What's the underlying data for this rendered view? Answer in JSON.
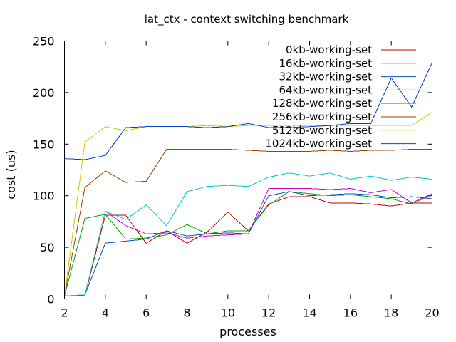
{
  "chart_data": {
    "type": "line",
    "title": "lat_ctx - context switching benchmark",
    "xlabel": "processes",
    "ylabel": "cost (us)",
    "xlim": [
      2,
      20
    ],
    "ylim": [
      0,
      250
    ],
    "xticks": [
      2,
      4,
      6,
      8,
      10,
      12,
      14,
      16,
      18,
      20
    ],
    "yticks": [
      0,
      50,
      100,
      150,
      200,
      250
    ],
    "grid": false,
    "legend_position": "top-right",
    "x": [
      2,
      3,
      4,
      5,
      6,
      7,
      8,
      9,
      10,
      11,
      12,
      13,
      14,
      15,
      16,
      17,
      18,
      19,
      20
    ],
    "series": [
      {
        "name": "0kb-working-set",
        "color": "#cc0000",
        "values": [
          3,
          3,
          81,
          81,
          54,
          66,
          54,
          65,
          84,
          66,
          92,
          99,
          99,
          93,
          93,
          92,
          90,
          93,
          93
        ]
      },
      {
        "name": "16kb-working-set",
        "color": "#00aa00",
        "values": [
          3,
          78,
          82,
          58,
          59,
          62,
          72,
          63,
          66,
          66,
          91,
          104,
          102,
          100,
          101,
          99,
          97,
          92,
          101
        ]
      },
      {
        "name": "32kb-working-set",
        "color": "#0055cc",
        "values": [
          3,
          4,
          54,
          56,
          58,
          66,
          61,
          63,
          64,
          63,
          100,
          104,
          100,
          101,
          102,
          101,
          98,
          99,
          97
        ]
      },
      {
        "name": "64kb-working-set",
        "color": "#cc00cc",
        "values": [
          3,
          4,
          85,
          71,
          63,
          64,
          59,
          61,
          62,
          63,
          107,
          107,
          107,
          106,
          107,
          103,
          106,
          93,
          102
        ]
      },
      {
        "name": "128kb-working-set",
        "color": "#00cccc",
        "values": [
          3,
          4,
          85,
          77,
          91,
          71,
          104,
          109,
          110,
          109,
          118,
          122,
          119,
          122,
          116,
          119,
          115,
          118,
          116
        ]
      },
      {
        "name": "256kb-working-set",
        "color": "#994400",
        "values": [
          3,
          108,
          124,
          113,
          114,
          145,
          145,
          145,
          145,
          144,
          143,
          143,
          143,
          144,
          143,
          144,
          144,
          145,
          145
        ]
      },
      {
        "name": "512kb-working-set",
        "color": "#cccc00",
        "values": [
          3,
          152,
          167,
          163,
          167,
          167,
          167,
          168,
          167,
          168,
          168,
          168,
          168,
          168,
          168,
          168,
          168,
          168,
          181
        ]
      },
      {
        "name": "1024kb-working-set",
        "color": "#0044cc",
        "values": [
          136,
          135,
          139,
          166,
          167,
          167,
          167,
          166,
          167,
          170,
          166,
          166,
          167,
          168,
          170,
          170,
          214,
          186,
          229
        ]
      }
    ]
  }
}
